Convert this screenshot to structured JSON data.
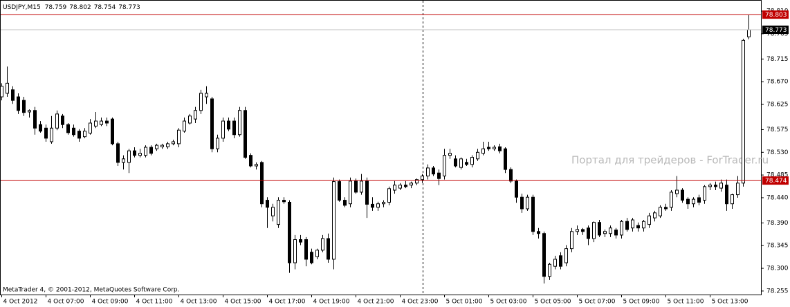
{
  "chart_data": {
    "type": "candlestick",
    "title": "USDJPY,M15",
    "footer": "MetaTrader 4, © 2001-2012, MetaQuotes Software Corp.",
    "watermark": "Портал для трейдеров - ForTrader.ru",
    "categories": [
      "4 Oct 2012",
      null,
      null,
      null,
      null,
      null,
      null,
      null,
      "4 Oct 07:00",
      null,
      null,
      null,
      null,
      null,
      null,
      null,
      "4 Oct 09:00",
      null,
      null,
      null,
      null,
      null,
      null,
      null,
      "4 Oct 11:00",
      null,
      null,
      null,
      null,
      null,
      null,
      null,
      "4 Oct 13:00",
      null,
      null,
      null,
      null,
      null,
      null,
      null,
      "4 Oct 15:00",
      null,
      null,
      null,
      null,
      null,
      null,
      null,
      "4 Oct 17:00",
      null,
      null,
      null,
      null,
      null,
      null,
      null,
      "4 Oct 19:00",
      null,
      null,
      null,
      null,
      null,
      null,
      null,
      "4 Oct 21:00",
      null,
      null,
      null,
      null,
      null,
      null,
      null,
      "4 Oct 23:00",
      null,
      null,
      null,
      null,
      null,
      null,
      null,
      "5 Oct 01:00",
      null,
      null,
      null,
      null,
      null,
      null,
      null,
      "5 Oct 03:00",
      null,
      null,
      null,
      null,
      null,
      null,
      null,
      "5 Oct 05:00",
      null,
      null,
      null,
      null,
      null,
      null,
      null,
      "5 Oct 07:00",
      null,
      null,
      null,
      null,
      null,
      null,
      null,
      "5 Oct 09:00",
      null,
      null,
      null,
      null,
      null,
      null,
      null,
      "5 Oct 11:00",
      null,
      null,
      null,
      null,
      null,
      null,
      null,
      "5 Oct 13:00",
      null,
      null,
      null,
      null,
      null,
      null,
      null
    ],
    "ohlc": [
      [
        78.64,
        78.667,
        78.633,
        78.661
      ],
      [
        78.647,
        78.7,
        78.64,
        78.667
      ],
      [
        78.654,
        78.661,
        78.626,
        78.633
      ],
      [
        78.64,
        78.647,
        78.606,
        78.613
      ],
      [
        78.633,
        78.64,
        78.602,
        78.609
      ],
      [
        78.61,
        78.615,
        78.599,
        78.613
      ],
      [
        78.613,
        78.62,
        78.565,
        78.578
      ],
      [
        78.585,
        78.592,
        78.569,
        78.572
      ],
      [
        78.578,
        78.585,
        78.551,
        78.558
      ],
      [
        78.551,
        78.602,
        78.547,
        78.578
      ],
      [
        78.578,
        78.613,
        78.574,
        78.606
      ],
      [
        78.602,
        78.606,
        78.578,
        78.585
      ],
      [
        78.585,
        78.588,
        78.565,
        78.569
      ],
      [
        78.578,
        78.585,
        78.561,
        78.565
      ],
      [
        78.572,
        78.576,
        78.551,
        78.558
      ],
      [
        78.561,
        78.578,
        78.558,
        78.572
      ],
      [
        78.568,
        78.596,
        78.565,
        78.588
      ],
      [
        78.582,
        78.61,
        78.578,
        78.592
      ],
      [
        78.585,
        78.599,
        78.582,
        78.592
      ],
      [
        78.592,
        78.599,
        78.582,
        78.588
      ],
      [
        78.596,
        78.599,
        78.544,
        78.547
      ],
      [
        78.547,
        78.551,
        78.503,
        78.51
      ],
      [
        78.51,
        78.524,
        78.496,
        78.517
      ],
      [
        78.51,
        78.537,
        78.489,
        78.533
      ],
      [
        78.533,
        78.54,
        78.52,
        78.524
      ],
      [
        78.524,
        78.537,
        78.52,
        78.528
      ],
      [
        78.524,
        78.544,
        78.52,
        78.54
      ],
      [
        78.54,
        78.544,
        78.524,
        78.528
      ],
      [
        78.537,
        78.547,
        78.533,
        78.544
      ],
      [
        78.541,
        78.547,
        78.537,
        78.544
      ],
      [
        78.541,
        78.551,
        78.537,
        78.547
      ],
      [
        78.547,
        78.555,
        78.544,
        78.551
      ],
      [
        78.547,
        78.578,
        78.54,
        78.574
      ],
      [
        78.572,
        78.599,
        78.569,
        78.592
      ],
      [
        78.588,
        78.606,
        78.585,
        78.602
      ],
      [
        78.596,
        78.62,
        78.588,
        78.613
      ],
      [
        78.613,
        78.654,
        78.606,
        78.647
      ],
      [
        78.64,
        78.661,
        78.626,
        78.647
      ],
      [
        78.636,
        78.64,
        78.53,
        78.537
      ],
      [
        78.537,
        78.565,
        78.53,
        78.558
      ],
      [
        78.558,
        78.599,
        78.551,
        78.592
      ],
      [
        78.592,
        78.599,
        78.572,
        78.576
      ],
      [
        78.592,
        78.599,
        78.558,
        78.565
      ],
      [
        78.565,
        78.62,
        78.561,
        78.613
      ],
      [
        78.613,
        78.62,
        78.517,
        78.52
      ],
      [
        78.524,
        78.528,
        78.5,
        78.503
      ],
      [
        78.503,
        78.51,
        78.496,
        78.506
      ],
      [
        78.51,
        78.513,
        78.421,
        78.428
      ],
      [
        78.435,
        78.441,
        78.38,
        78.421
      ],
      [
        78.404,
        78.428,
        78.393,
        78.421
      ],
      [
        78.387,
        78.441,
        78.38,
        78.435
      ],
      [
        78.435,
        78.441,
        78.428,
        78.432
      ],
      [
        78.431,
        78.435,
        78.291,
        78.311
      ],
      [
        78.311,
        78.366,
        78.298,
        78.357
      ],
      [
        78.357,
        78.366,
        78.346,
        78.352
      ],
      [
        78.357,
        78.362,
        78.304,
        78.318
      ],
      [
        78.332,
        78.339,
        78.308,
        78.311
      ],
      [
        78.323,
        78.339,
        78.318,
        78.336
      ],
      [
        78.336,
        78.366,
        78.332,
        78.359
      ],
      [
        78.359,
        78.369,
        78.311,
        78.318
      ],
      [
        78.318,
        78.48,
        78.298,
        78.472
      ],
      [
        78.472,
        78.476,
        78.432,
        78.435
      ],
      [
        78.435,
        78.441,
        78.421,
        78.425
      ],
      [
        78.428,
        78.48,
        78.421,
        78.473
      ],
      [
        78.473,
        78.478,
        78.448,
        78.451
      ],
      [
        78.451,
        78.487,
        78.446,
        78.473
      ],
      [
        78.473,
        78.48,
        78.4,
        78.427
      ],
      [
        78.427,
        78.441,
        78.414,
        78.421
      ],
      [
        78.421,
        78.432,
        78.414,
        78.428
      ],
      [
        78.428,
        78.435,
        78.421,
        78.431
      ],
      [
        78.431,
        78.462,
        78.425,
        78.458
      ],
      [
        78.455,
        78.473,
        78.448,
        78.465
      ],
      [
        78.459,
        78.469,
        78.455,
        78.465
      ],
      [
        78.465,
        78.473,
        78.459,
        78.462
      ],
      [
        78.465,
        78.472,
        78.459,
        78.469
      ],
      [
        78.469,
        78.478,
        78.465,
        78.476
      ],
      [
        78.476,
        78.487,
        78.469,
        78.483
      ],
      [
        78.483,
        78.506,
        78.476,
        78.499
      ],
      [
        78.499,
        78.503,
        78.483,
        78.487
      ],
      [
        78.489,
        78.496,
        78.465,
        78.478
      ],
      [
        78.483,
        78.537,
        78.476,
        78.524
      ],
      [
        78.524,
        78.537,
        78.517,
        78.528
      ],
      [
        78.517,
        78.524,
        78.5,
        78.503
      ],
      [
        78.5,
        78.52,
        78.496,
        78.517
      ],
      [
        78.51,
        78.517,
        78.503,
        78.506
      ],
      [
        78.506,
        78.524,
        78.5,
        78.52
      ],
      [
        78.517,
        78.537,
        78.513,
        78.53
      ],
      [
        78.528,
        78.551,
        78.524,
        78.537
      ],
      [
        78.54,
        78.551,
        78.533,
        78.537
      ],
      [
        78.537,
        78.544,
        78.533,
        78.54
      ],
      [
        78.541,
        78.547,
        78.528,
        78.533
      ],
      [
        78.537,
        78.54,
        78.489,
        78.496
      ],
      [
        78.496,
        78.5,
        78.469,
        78.473
      ],
      [
        78.473,
        78.476,
        78.43,
        78.441
      ],
      [
        78.441,
        78.448,
        78.41,
        78.418
      ],
      [
        78.418,
        78.446,
        78.414,
        78.441
      ],
      [
        78.441,
        78.446,
        78.366,
        78.373
      ],
      [
        78.373,
        78.38,
        78.359,
        78.369
      ],
      [
        78.369,
        78.373,
        78.27,
        78.284
      ],
      [
        78.284,
        78.311,
        78.277,
        78.308
      ],
      [
        78.304,
        78.325,
        78.298,
        78.318
      ],
      [
        78.325,
        78.332,
        78.298,
        78.304
      ],
      [
        78.311,
        78.346,
        78.304,
        78.339
      ],
      [
        78.339,
        78.38,
        78.332,
        78.373
      ],
      [
        78.373,
        78.385,
        78.366,
        78.377
      ],
      [
        78.377,
        78.38,
        78.366,
        78.373
      ],
      [
        78.38,
        78.385,
        78.346,
        78.359
      ],
      [
        78.359,
        78.393,
        78.352,
        78.391
      ],
      [
        78.391,
        78.396,
        78.362,
        78.366
      ],
      [
        78.369,
        78.377,
        78.362,
        78.373
      ],
      [
        78.369,
        78.385,
        78.362,
        78.38
      ],
      [
        78.376,
        78.38,
        78.359,
        78.366
      ],
      [
        78.366,
        78.396,
        78.359,
        78.393
      ],
      [
        78.393,
        78.4,
        78.373,
        78.377
      ],
      [
        78.38,
        78.4,
        78.373,
        78.396
      ],
      [
        78.385,
        78.391,
        78.373,
        78.38
      ],
      [
        78.38,
        78.396,
        78.373,
        78.393
      ],
      [
        78.387,
        78.41,
        78.38,
        78.404
      ],
      [
        78.4,
        78.414,
        78.393,
        78.41
      ],
      [
        78.404,
        78.425,
        78.4,
        78.421
      ],
      [
        78.421,
        78.428,
        78.414,
        78.418
      ],
      [
        78.421,
        78.455,
        78.414,
        78.451
      ],
      [
        78.448,
        78.483,
        78.441,
        78.455
      ],
      [
        78.455,
        78.459,
        78.43,
        78.435
      ],
      [
        78.437,
        78.441,
        78.418,
        78.428
      ],
      [
        78.428,
        78.441,
        78.421,
        78.437
      ],
      [
        78.44,
        78.446,
        78.425,
        78.431
      ],
      [
        78.435,
        78.465,
        78.428,
        78.462
      ],
      [
        78.462,
        78.469,
        78.455,
        78.465
      ],
      [
        78.465,
        78.472,
        78.455,
        78.462
      ],
      [
        78.459,
        78.476,
        78.452,
        78.469
      ],
      [
        78.465,
        78.476,
        78.414,
        78.428
      ],
      [
        78.428,
        78.448,
        78.418,
        78.446
      ],
      [
        78.446,
        78.483,
        78.44,
        78.469
      ],
      [
        78.469,
        78.755,
        78.462,
        78.752
      ],
      [
        78.759,
        78.802,
        78.754,
        78.773
      ]
    ],
    "ylim": [
      78.248,
      78.832
    ],
    "yticks": [
      {
        "value": 78.81,
        "label": "78.810"
      },
      78.765,
      78.715,
      {
        "value": 78.67,
        "label": "78.670"
      },
      78.625,
      78.575,
      {
        "value": 78.53,
        "label": "78.530"
      },
      78.485,
      {
        "value": 78.44,
        "label": "78.440"
      },
      {
        "value": 78.39,
        "label": "78.390"
      },
      78.345,
      {
        "value": 78.3,
        "label": "78.300"
      },
      78.255
    ],
    "hlines": [
      {
        "value": 78.803,
        "color": "#c00000"
      },
      {
        "value": 78.474,
        "color": "#c00000"
      }
    ],
    "bid": {
      "value": 78.773,
      "color": "#000000",
      "line_color": "#c0c0c0"
    },
    "up_color": "#ffffff",
    "down_color": "#000000"
  }
}
